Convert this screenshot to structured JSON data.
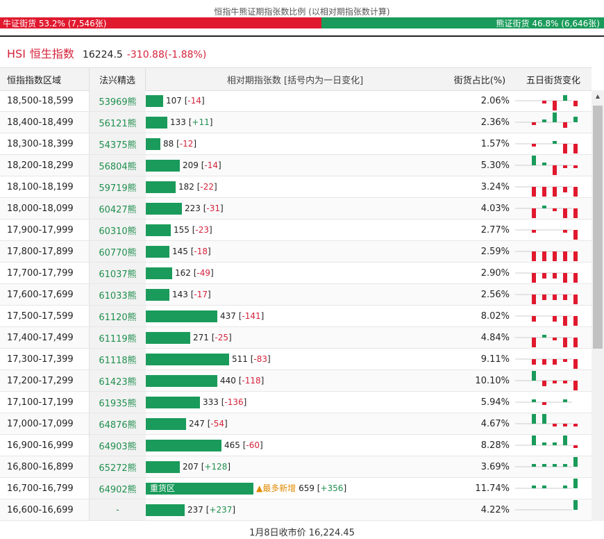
{
  "top_title": "恒指牛熊证期指张数比例 (以相对期指张数计算)",
  "ratio": {
    "bull_label": "牛证街货 53.2% (7,546张)",
    "bear_label": "熊证街货 46.8% (6,646张)",
    "bull_fraction": 0.532
  },
  "index": {
    "code": "HSI",
    "name": "恒生指数",
    "price": "16224.5",
    "change": "-310.88(-1.88%)"
  },
  "headers": {
    "range": "恒指指数区域",
    "warrant": "法兴精选",
    "count": "相对期指张数 [括号内为一日变化]",
    "pct": "街货占比(%)",
    "five_day": "五日街货变化"
  },
  "colors": {
    "green": "#1a9b5b",
    "red": "#e0192e"
  },
  "bar_scale_max": 659,
  "rows": [
    {
      "range": "18,500-18,599",
      "warrant": "53969熊",
      "count": 107,
      "change": "-14",
      "pct": "2.06%",
      "five": [
        0,
        -1,
        -3,
        2,
        -2
      ]
    },
    {
      "range": "18,400-18,499",
      "warrant": "56121熊",
      "count": 133,
      "change": "+11",
      "pct": "2.36%",
      "five": [
        -1,
        1,
        3,
        -2,
        2
      ]
    },
    {
      "range": "18,300-18,399",
      "warrant": "54375熊",
      "count": 88,
      "change": "-12",
      "pct": "1.57%",
      "five": [
        -1,
        0,
        1,
        -3,
        -3
      ]
    },
    {
      "range": "18,200-18,299",
      "warrant": "56804熊",
      "count": 209,
      "change": "-14",
      "pct": "5.30%",
      "five": [
        3,
        1,
        -3,
        -1,
        -1
      ]
    },
    {
      "range": "18,100-18,199",
      "warrant": "59719熊",
      "count": 182,
      "change": "-22",
      "pct": "3.24%",
      "five": [
        -3,
        -3,
        -3,
        -2,
        -3
      ]
    },
    {
      "range": "18,000-18,099",
      "warrant": "60427熊",
      "count": 223,
      "change": "-31",
      "pct": "4.03%",
      "five": [
        -3,
        1,
        -1,
        -3,
        -3
      ]
    },
    {
      "range": "17,900-17,999",
      "warrant": "60310熊",
      "count": 155,
      "change": "-23",
      "pct": "2.77%",
      "five": [
        -1,
        0,
        0,
        -1,
        -3
      ]
    },
    {
      "range": "17,800-17,899",
      "warrant": "60770熊",
      "count": 145,
      "change": "-18",
      "pct": "2.59%",
      "five": [
        -3,
        -3,
        -3,
        -3,
        -3
      ]
    },
    {
      "range": "17,700-17,799",
      "warrant": "61037熊",
      "count": 162,
      "change": "-49",
      "pct": "2.90%",
      "five": [
        -3,
        -2,
        -2,
        -3,
        -3
      ]
    },
    {
      "range": "17,600-17,699",
      "warrant": "61033熊",
      "count": 143,
      "change": "-17",
      "pct": "2.56%",
      "five": [
        -3,
        -2,
        -2,
        -2,
        -3
      ]
    },
    {
      "range": "17,500-17,599",
      "warrant": "61120熊",
      "count": 437,
      "change": "-141",
      "pct": "8.02%",
      "five": [
        -2,
        0,
        -2,
        -3,
        -3
      ]
    },
    {
      "range": "17,400-17,499",
      "warrant": "61119熊",
      "count": 271,
      "change": "-25",
      "pct": "4.84%",
      "five": [
        -3,
        1,
        -1,
        -3,
        -3
      ]
    },
    {
      "range": "17,300-17,399",
      "warrant": "61118熊",
      "count": 511,
      "change": "-83",
      "pct": "9.11%",
      "five": [
        -2,
        -2,
        -2,
        -1,
        -3
      ]
    },
    {
      "range": "17,200-17,299",
      "warrant": "61423熊",
      "count": 440,
      "change": "-118",
      "pct": "10.10%",
      "five": [
        3,
        -2,
        -1,
        -1,
        -3
      ]
    },
    {
      "range": "17,100-17,199",
      "warrant": "61935熊",
      "count": 333,
      "change": "-136",
      "pct": "5.94%",
      "five": [
        1,
        -1,
        0,
        1,
        0
      ]
    },
    {
      "range": "17,000-17,099",
      "warrant": "64876熊",
      "count": 247,
      "change": "-54",
      "pct": "4.67%",
      "five": [
        3,
        3,
        -1,
        -1,
        -1
      ]
    },
    {
      "range": "16,900-16,999",
      "warrant": "64903熊",
      "count": 465,
      "change": "-60",
      "pct": "8.28%",
      "five": [
        3,
        1,
        1,
        3,
        -1
      ]
    },
    {
      "range": "16,800-16,899",
      "warrant": "65272熊",
      "count": 207,
      "change": "+128",
      "pct": "3.69%",
      "five": [
        1,
        1,
        1,
        1,
        3
      ]
    },
    {
      "range": "16,700-16,799",
      "warrant": "64902熊",
      "count": 659,
      "change": "+356",
      "pct": "11.74%",
      "bar_label": "重货区",
      "note": "▲最多新增",
      "five": [
        1,
        1,
        0,
        1,
        3
      ]
    },
    {
      "range": "16,600-16,699",
      "warrant": "-",
      "count": 237,
      "change": "+237",
      "pct": "4.22%",
      "five": [
        0,
        0,
        0,
        0,
        3
      ]
    }
  ],
  "footer": "1月8日收市价 16,224.45"
}
